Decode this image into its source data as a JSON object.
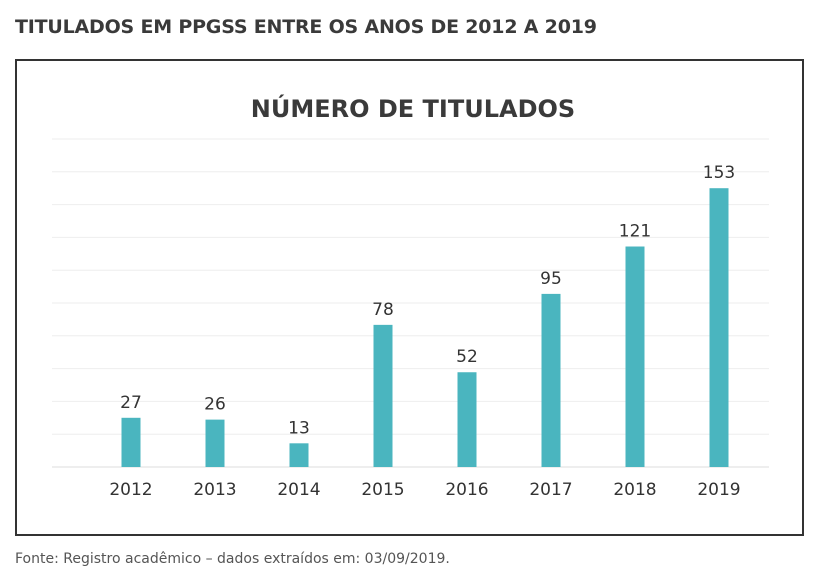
{
  "heading": "TITULADOS EM PPGSS ENTRE OS ANOS DE 2012 A 2019",
  "source_note": "Fonte: Registro acadêmico – dados extraídos em: 03/09/2019.",
  "chart_data": {
    "type": "bar",
    "title": "NÚMERO DE TITULADOS",
    "xlabel": "",
    "ylabel": "",
    "categories": [
      "2012",
      "2013",
      "2014",
      "2015",
      "2016",
      "2017",
      "2018",
      "2019"
    ],
    "values": [
      27,
      26,
      13,
      78,
      52,
      95,
      121,
      153
    ],
    "ylim": [
      0,
      180
    ],
    "grid": true,
    "legend": "none",
    "colors": {
      "bar": "#4ab5bf",
      "grid": "#eeeeee",
      "axis": "#dddddd"
    }
  }
}
